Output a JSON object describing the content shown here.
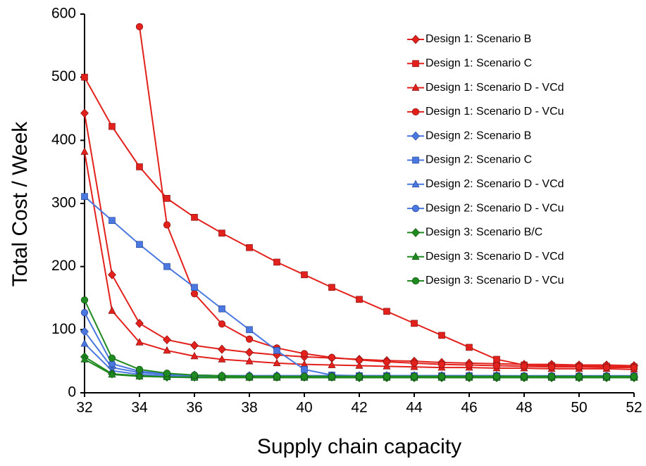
{
  "chart_data": {
    "type": "line",
    "x_label": "Supply chain capacity",
    "y_label": "Total Cost / Week",
    "x": [
      32,
      33,
      34,
      35,
      36,
      37,
      38,
      39,
      40,
      41,
      42,
      43,
      44,
      45,
      46,
      47,
      48,
      49,
      50,
      51,
      52
    ],
    "xlim": [
      32,
      52
    ],
    "xticks": [
      32,
      34,
      36,
      38,
      40,
      42,
      44,
      46,
      48,
      50,
      52
    ],
    "ylim": [
      0,
      600
    ],
    "yticks": [
      0,
      100,
      200,
      300,
      400,
      500,
      600
    ],
    "legend": "top-right",
    "series": [
      {
        "name": "Design 1: Scenario B",
        "color": "#e3211c",
        "marker": "diamond",
        "values": [
          443,
          187,
          110,
          84,
          75,
          69,
          64,
          60,
          57,
          55,
          53,
          51,
          50,
          48,
          47,
          46,
          45,
          45,
          44,
          44,
          43
        ]
      },
      {
        "name": "Design 1: Scenario C",
        "color": "#e3211c",
        "marker": "square",
        "values": [
          500,
          422,
          358,
          308,
          278,
          253,
          230,
          207,
          187,
          167,
          148,
          129,
          110,
          91,
          72,
          53,
          44,
          43,
          42,
          42,
          41
        ]
      },
      {
        "name": "Design 1: Scenario D - VCd",
        "color": "#e3211c",
        "marker": "triangle",
        "values": [
          382,
          130,
          80,
          67,
          58,
          53,
          50,
          47,
          45,
          44,
          43,
          42,
          41,
          40,
          40,
          39,
          39,
          38,
          38,
          38,
          37
        ]
      },
      {
        "name": "Design 1: Scenario D - VCu",
        "color": "#e3211c",
        "marker": "circle",
        "values": [
          null,
          null,
          580,
          266,
          157,
          109,
          85,
          71,
          62,
          56,
          52,
          49,
          47,
          45,
          44,
          43,
          42,
          41,
          41,
          40,
          40
        ]
      },
      {
        "name": "Design 2: Scenario B",
        "color": "#4a78e0",
        "marker": "diamond",
        "values": [
          97,
          40,
          32,
          29,
          28,
          27,
          27,
          27,
          27,
          27,
          27,
          27,
          27,
          27,
          27,
          27,
          26,
          26,
          26,
          26,
          26
        ]
      },
      {
        "name": "Design 2: Scenario C",
        "color": "#4a78e0",
        "marker": "square",
        "values": [
          311,
          273,
          235,
          200,
          167,
          133,
          100,
          67,
          37,
          28,
          27,
          27,
          27,
          27,
          27,
          27,
          26,
          26,
          26,
          26,
          26
        ]
      },
      {
        "name": "Design 2: Scenario D - VCd",
        "color": "#4a78e0",
        "marker": "triangle",
        "values": [
          78,
          35,
          29,
          27,
          26,
          26,
          26,
          26,
          26,
          26,
          26,
          26,
          26,
          26,
          26,
          26,
          26,
          26,
          26,
          26,
          26
        ]
      },
      {
        "name": "Design 2: Scenario D - VCu",
        "color": "#4a78e0",
        "marker": "circle",
        "values": [
          127,
          46,
          34,
          30,
          28,
          27,
          27,
          27,
          27,
          27,
          27,
          27,
          27,
          27,
          27,
          27,
          27,
          27,
          27,
          27,
          27
        ]
      },
      {
        "name": "Design 3: Scenario B/C",
        "color": "#1f8a1f",
        "marker": "diamond",
        "values": [
          57,
          30,
          27,
          25,
          25,
          25,
          25,
          25,
          25,
          25,
          24,
          24,
          24,
          24,
          24,
          24,
          24,
          24,
          24,
          24,
          24
        ]
      },
      {
        "name": "Design 3: Scenario D - VCd",
        "color": "#1f8a1f",
        "marker": "triangle",
        "values": [
          53,
          29,
          26,
          25,
          24,
          24,
          24,
          24,
          24,
          24,
          24,
          24,
          24,
          24,
          24,
          24,
          24,
          24,
          24,
          24,
          24
        ]
      },
      {
        "name": "Design 3: Scenario D - VCu",
        "color": "#1f8a1f",
        "marker": "circle",
        "values": [
          147,
          55,
          37,
          31,
          28,
          27,
          26,
          26,
          26,
          26,
          26,
          26,
          26,
          26,
          26,
          26,
          26,
          26,
          26,
          26,
          26
        ]
      }
    ]
  }
}
